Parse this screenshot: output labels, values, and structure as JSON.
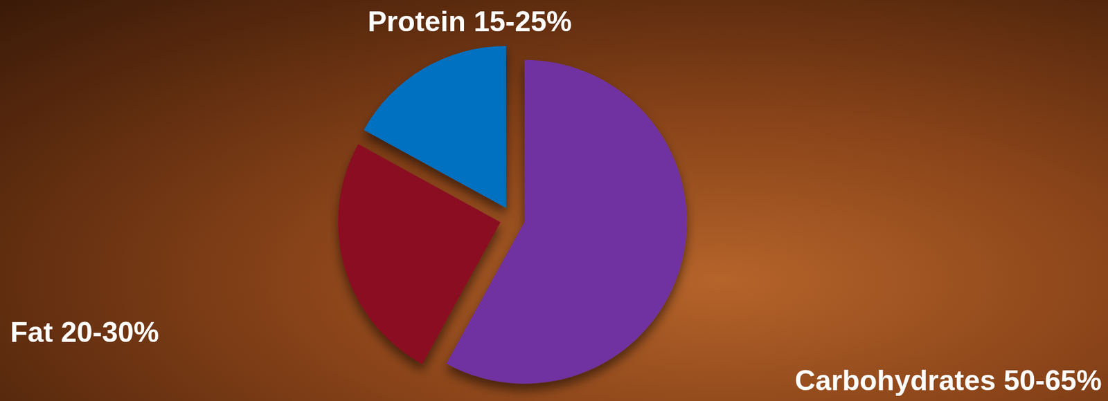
{
  "chart_data": {
    "type": "pie",
    "categories": [
      "Carbohydrates 50-65%",
      "Fat 20-30%",
      "Protein 15-25%"
    ],
    "values": [
      58,
      25,
      17
    ],
    "colors": [
      "#7030a0",
      "#8b0a22",
      "#0070c0"
    ]
  }
}
